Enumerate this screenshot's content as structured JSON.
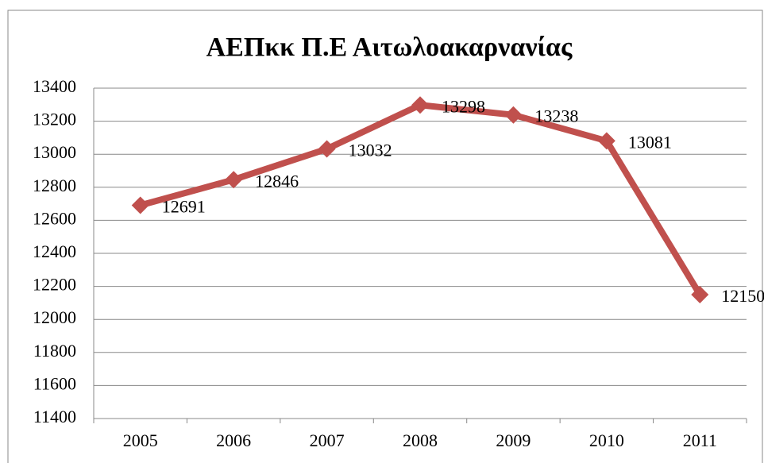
{
  "chart_data": {
    "type": "line",
    "title": "ΑΕΠκκ Π.Ε Αιτωλοακαρνανίας",
    "categories": [
      "2005",
      "2006",
      "2007",
      "2008",
      "2009",
      "2010",
      "2011"
    ],
    "values": [
      12691,
      12846,
      13032,
      13298,
      13238,
      13081,
      12150
    ],
    "color": "#c0504d",
    "ylim": [
      11400,
      13400
    ],
    "yticks": [
      11400,
      11600,
      11800,
      12000,
      12200,
      12400,
      12600,
      12800,
      13000,
      13200,
      13400
    ],
    "grid": true
  }
}
